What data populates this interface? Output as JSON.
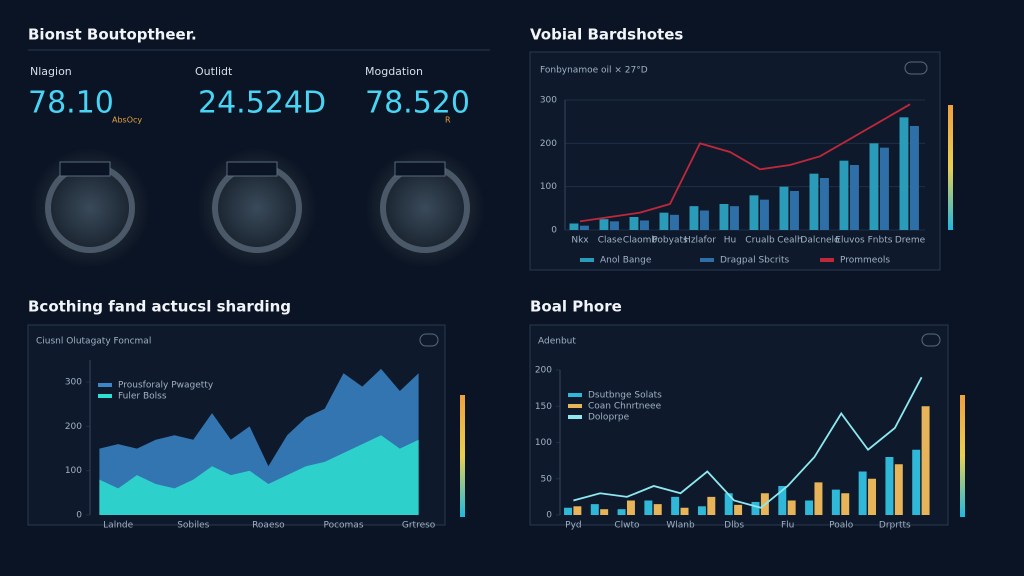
{
  "header": {
    "title": "Bionst Boutoptheer."
  },
  "kpis": [
    {
      "label": "Nlagion",
      "value": "78.10",
      "note": "AbsOcy"
    },
    {
      "label": "Outlidt",
      "value": "24.524D"
    },
    {
      "label": "Mogdation",
      "value": "78.520",
      "note": "R"
    }
  ],
  "sections": [
    "Vobial Bardshotes",
    "Bcothing fand actucsl sharding",
    "Boal Phore"
  ],
  "chart_data": [
    {
      "type": "bar",
      "title": "Fonbynamoe oil × 27°D",
      "legend": "bottom",
      "grid": true,
      "categories": [
        "Nkx",
        "Clase",
        "Claomb",
        "Pobyats",
        "Hzlafor",
        "Hu",
        "Crualb",
        "Cealh",
        "Dalcnelo",
        "Eluvos",
        "Fnbts",
        "Dreme"
      ],
      "ylim": [
        0,
        300
      ],
      "yticks": [
        0,
        100,
        200,
        300
      ],
      "series": [
        {
          "name": "Anol Bange",
          "color": "#2a9bb8",
          "values": [
            15,
            25,
            30,
            40,
            55,
            60,
            80,
            100,
            130,
            160,
            200,
            260
          ]
        },
        {
          "name": "Dragpal Sbcrits",
          "color": "#2f6fa8",
          "values": [
            10,
            20,
            22,
            35,
            45,
            55,
            70,
            90,
            120,
            150,
            190,
            240
          ]
        },
        {
          "name": "Prommeols",
          "type": "line",
          "color": "#c0283a",
          "values": [
            20,
            30,
            40,
            60,
            200,
            180,
            140,
            150,
            170,
            210,
            250,
            290
          ]
        }
      ]
    },
    {
      "type": "area",
      "title": "Ciusnl Olutagaty Foncmal",
      "legend": "upper left",
      "grid": false,
      "categories": [
        null,
        "Lalnde",
        null,
        null,
        null,
        "Sobiles",
        null,
        null,
        null,
        "Roaeso",
        null,
        null,
        null,
        "Pocomas",
        null,
        null,
        null,
        "Grtreso"
      ],
      "ylim": [
        0,
        350
      ],
      "yticks": [
        0,
        100,
        200,
        300
      ],
      "series": [
        {
          "name": "Prousforaly Pwagetty",
          "color": "#3a86c8",
          "values": [
            150,
            160,
            150,
            170,
            180,
            170,
            230,
            170,
            200,
            110,
            180,
            220,
            240,
            320,
            290,
            330,
            280,
            320
          ]
        },
        {
          "name": "Fuler Bolss",
          "color": "#2de0d0",
          "values": [
            80,
            60,
            90,
            70,
            60,
            80,
            110,
            90,
            100,
            70,
            90,
            110,
            120,
            140,
            160,
            180,
            150,
            170
          ]
        }
      ]
    },
    {
      "type": "bar",
      "title": "Adenbut",
      "legend": "upper left",
      "grid": false,
      "categories": [
        "Pyd",
        null,
        "Clwto",
        null,
        "Wlanb",
        null,
        "Dlbs",
        null,
        "Flu",
        null,
        "Poalo",
        null,
        "Drprtts",
        null
      ],
      "ylim": [
        0,
        200
      ],
      "yticks": [
        0,
        50,
        100,
        150,
        200
      ],
      "series": [
        {
          "name": "Dsutbnge Solats",
          "color": "#2fb8d8",
          "values": [
            10,
            15,
            8,
            20,
            25,
            12,
            30,
            18,
            40,
            20,
            35,
            60,
            80,
            90
          ]
        },
        {
          "name": "Coan Chnrtneee",
          "color": "#e8b45a",
          "values": [
            12,
            8,
            20,
            15,
            10,
            25,
            14,
            30,
            20,
            45,
            30,
            50,
            70,
            150
          ]
        },
        {
          "name": "Doloprpe",
          "type": "line",
          "color": "#8ee8f0",
          "values": [
            20,
            30,
            25,
            40,
            30,
            60,
            20,
            10,
            40,
            80,
            140,
            90,
            120,
            190
          ]
        }
      ]
    }
  ]
}
